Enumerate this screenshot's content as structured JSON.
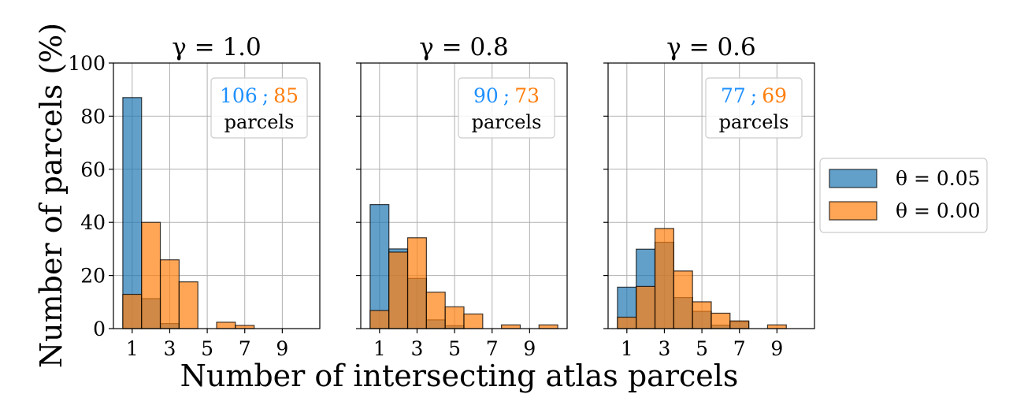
{
  "figure": {
    "ylabel": "Number of parcels (%)",
    "xlabel": "Number of intersecting atlas parcels",
    "counts_label": "parcels",
    "counts_separator": ";"
  },
  "legend": {
    "placement": "outside right",
    "entries": [
      {
        "label": "θ = 0.05",
        "color": "#1f77b4"
      },
      {
        "label": "θ = 0.00",
        "color": "#ff7f0e"
      }
    ]
  },
  "chart_data": [
    {
      "type": "bar",
      "title": "γ = 1.0",
      "counts": {
        "theta_005": "106",
        "theta_000": "85"
      },
      "xlim": [
        0,
        11
      ],
      "ylim": [
        0,
        100
      ],
      "xticks": [
        "1",
        "3",
        "5",
        "7",
        "9"
      ],
      "yticks": [
        "0",
        "20",
        "40",
        "60",
        "80",
        "100"
      ],
      "grid": true,
      "bin_width": 1,
      "series": [
        {
          "name": "θ = 0.05",
          "color": "#1f77b4",
          "opacity": 0.7,
          "x": [
            1,
            2,
            3,
            4,
            5,
            6,
            7,
            8,
            9,
            10
          ],
          "values": [
            87,
            11.3,
            1.9,
            0,
            0,
            0,
            0,
            0,
            0,
            0
          ]
        },
        {
          "name": "θ = 0.00",
          "color": "#ff7f0e",
          "opacity": 0.7,
          "x": [
            1,
            2,
            3,
            4,
            5,
            6,
            7,
            8,
            9,
            10
          ],
          "values": [
            12.9,
            40,
            25.9,
            17.6,
            0,
            2.4,
            1.2,
            0,
            0,
            0
          ]
        }
      ]
    },
    {
      "type": "bar",
      "title": "γ = 0.8",
      "counts": {
        "theta_005": "90",
        "theta_000": "73"
      },
      "xlim": [
        0,
        11
      ],
      "ylim": [
        0,
        100
      ],
      "xticks": [
        "1",
        "3",
        "5",
        "7",
        "9"
      ],
      "yticks": [
        "0",
        "20",
        "40",
        "60",
        "80",
        "100"
      ],
      "grid": true,
      "bin_width": 1,
      "series": [
        {
          "name": "θ = 0.05",
          "color": "#1f77b4",
          "opacity": 0.7,
          "x": [
            1,
            2,
            3,
            4,
            5,
            6,
            7,
            8,
            9,
            10
          ],
          "values": [
            46.7,
            30,
            18.9,
            3.3,
            1.1,
            0,
            0,
            0,
            0,
            0
          ]
        },
        {
          "name": "θ = 0.00",
          "color": "#ff7f0e",
          "opacity": 0.7,
          "x": [
            1,
            2,
            3,
            4,
            5,
            6,
            7,
            8,
            9,
            10
          ],
          "values": [
            6.8,
            28.8,
            34.2,
            13.7,
            8.2,
            5.5,
            0,
            1.4,
            0,
            1.4
          ]
        }
      ]
    },
    {
      "type": "bar",
      "title": "γ = 0.6",
      "counts": {
        "theta_005": "77",
        "theta_000": "69"
      },
      "xlim": [
        0,
        11
      ],
      "ylim": [
        0,
        100
      ],
      "xticks": [
        "1",
        "3",
        "5",
        "7",
        "9"
      ],
      "yticks": [
        "0",
        "20",
        "40",
        "60",
        "80",
        "100"
      ],
      "grid": true,
      "bin_width": 1,
      "series": [
        {
          "name": "θ = 0.05",
          "color": "#1f77b4",
          "opacity": 0.7,
          "x": [
            1,
            2,
            3,
            4,
            5,
            6,
            7,
            8,
            9,
            10
          ],
          "values": [
            15.6,
            29.9,
            32.5,
            11.7,
            6.5,
            1.3,
            2.6,
            0,
            0,
            0
          ]
        },
        {
          "name": "θ = 0.00",
          "color": "#ff7f0e",
          "opacity": 0.7,
          "x": [
            1,
            2,
            3,
            4,
            5,
            6,
            7,
            8,
            9,
            10
          ],
          "values": [
            4.3,
            15.9,
            37.7,
            21.7,
            10.1,
            5.8,
            2.9,
            0,
            1.4,
            0
          ]
        }
      ]
    }
  ]
}
